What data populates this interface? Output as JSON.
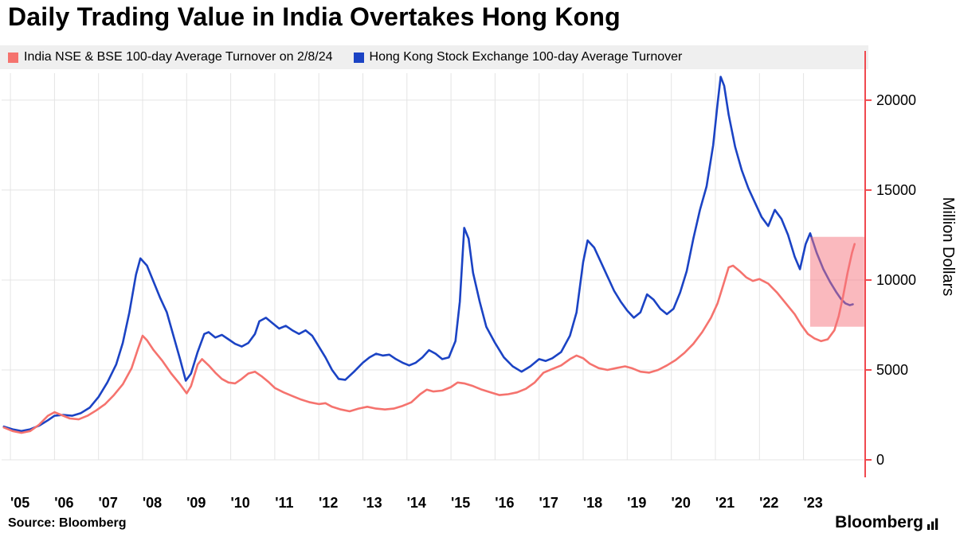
{
  "page": {
    "title": "Daily Trading Value in India Overtakes Hong Kong",
    "source": "Source: Bloomberg",
    "brand": "Bloomberg"
  },
  "chart_data": {
    "type": "line",
    "title": "Daily Trading Value in India Overtakes Hong Kong",
    "xlabel": "",
    "ylabel": "Million Dollars",
    "ylim": [
      0,
      21500
    ],
    "y_ticks": [
      0,
      5000,
      10000,
      15000,
      20000
    ],
    "x_range": [
      2004.8,
      2024.4
    ],
    "x_ticks": [
      {
        "label": "'05",
        "value": 2005
      },
      {
        "label": "'06",
        "value": 2006
      },
      {
        "label": "'07",
        "value": 2007
      },
      {
        "label": "'08",
        "value": 2008
      },
      {
        "label": "'09",
        "value": 2009
      },
      {
        "label": "'10",
        "value": 2010
      },
      {
        "label": "'11",
        "value": 2011
      },
      {
        "label": "'12",
        "value": 2012
      },
      {
        "label": "'13",
        "value": 2013
      },
      {
        "label": "'14",
        "value": 2014
      },
      {
        "label": "'15",
        "value": 2015
      },
      {
        "label": "'16",
        "value": 2016
      },
      {
        "label": "'17",
        "value": 2017
      },
      {
        "label": "'18",
        "value": 2018
      },
      {
        "label": "'19",
        "value": 2019
      },
      {
        "label": "'20",
        "value": 2020
      },
      {
        "label": "'21",
        "value": 2021
      },
      {
        "label": "'22",
        "value": 2022
      },
      {
        "label": "'23",
        "value": 2023
      }
    ],
    "grid": true,
    "grid_color": "#e4e4e4",
    "axis_color": "#f0494f",
    "legend_position": "top",
    "highlight_box": {
      "x0": 2023.15,
      "x1": 2024.38,
      "y0": 7400,
      "y1": 12400,
      "fill": "#f5737d",
      "opacity": 0.5
    },
    "series": [
      {
        "id": "india",
        "name": "India NSE & BSE 100-day Average Turnover on 2/8/24",
        "color": "#f5736e",
        "points": [
          [
            2004.85,
            1800
          ],
          [
            2005.05,
            1600
          ],
          [
            2005.25,
            1500
          ],
          [
            2005.45,
            1600
          ],
          [
            2005.65,
            1950
          ],
          [
            2005.85,
            2450
          ],
          [
            2006.0,
            2650
          ],
          [
            2006.15,
            2500
          ],
          [
            2006.35,
            2300
          ],
          [
            2006.55,
            2250
          ],
          [
            2006.75,
            2450
          ],
          [
            2006.95,
            2750
          ],
          [
            2007.15,
            3100
          ],
          [
            2007.35,
            3600
          ],
          [
            2007.55,
            4200
          ],
          [
            2007.75,
            5100
          ],
          [
            2007.9,
            6200
          ],
          [
            2008.0,
            6900
          ],
          [
            2008.1,
            6650
          ],
          [
            2008.25,
            6100
          ],
          [
            2008.45,
            5500
          ],
          [
            2008.65,
            4800
          ],
          [
            2008.85,
            4200
          ],
          [
            2009.0,
            3700
          ],
          [
            2009.1,
            4100
          ],
          [
            2009.25,
            5300
          ],
          [
            2009.35,
            5600
          ],
          [
            2009.5,
            5250
          ],
          [
            2009.65,
            4850
          ],
          [
            2009.8,
            4500
          ],
          [
            2009.95,
            4300
          ],
          [
            2010.1,
            4250
          ],
          [
            2010.25,
            4500
          ],
          [
            2010.4,
            4800
          ],
          [
            2010.55,
            4900
          ],
          [
            2010.7,
            4650
          ],
          [
            2010.85,
            4350
          ],
          [
            2011.0,
            4000
          ],
          [
            2011.2,
            3750
          ],
          [
            2011.4,
            3550
          ],
          [
            2011.6,
            3350
          ],
          [
            2011.8,
            3200
          ],
          [
            2012.0,
            3100
          ],
          [
            2012.15,
            3150
          ],
          [
            2012.3,
            2950
          ],
          [
            2012.5,
            2800
          ],
          [
            2012.7,
            2700
          ],
          [
            2012.9,
            2850
          ],
          [
            2013.1,
            2950
          ],
          [
            2013.3,
            2850
          ],
          [
            2013.5,
            2800
          ],
          [
            2013.7,
            2850
          ],
          [
            2013.9,
            3000
          ],
          [
            2014.1,
            3200
          ],
          [
            2014.3,
            3650
          ],
          [
            2014.45,
            3900
          ],
          [
            2014.6,
            3800
          ],
          [
            2014.8,
            3850
          ],
          [
            2015.0,
            4050
          ],
          [
            2015.15,
            4300
          ],
          [
            2015.3,
            4250
          ],
          [
            2015.5,
            4100
          ],
          [
            2015.7,
            3900
          ],
          [
            2015.9,
            3750
          ],
          [
            2016.1,
            3600
          ],
          [
            2016.3,
            3650
          ],
          [
            2016.5,
            3750
          ],
          [
            2016.7,
            3950
          ],
          [
            2016.9,
            4300
          ],
          [
            2017.1,
            4850
          ],
          [
            2017.3,
            5050
          ],
          [
            2017.5,
            5250
          ],
          [
            2017.7,
            5600
          ],
          [
            2017.85,
            5800
          ],
          [
            2018.0,
            5650
          ],
          [
            2018.15,
            5350
          ],
          [
            2018.35,
            5100
          ],
          [
            2018.55,
            5000
          ],
          [
            2018.75,
            5100
          ],
          [
            2018.95,
            5200
          ],
          [
            2019.1,
            5100
          ],
          [
            2019.3,
            4900
          ],
          [
            2019.5,
            4850
          ],
          [
            2019.7,
            5000
          ],
          [
            2019.9,
            5250
          ],
          [
            2020.1,
            5550
          ],
          [
            2020.3,
            5950
          ],
          [
            2020.5,
            6450
          ],
          [
            2020.7,
            7100
          ],
          [
            2020.9,
            7900
          ],
          [
            2021.05,
            8700
          ],
          [
            2021.15,
            9500
          ],
          [
            2021.3,
            10700
          ],
          [
            2021.4,
            10800
          ],
          [
            2021.55,
            10500
          ],
          [
            2021.7,
            10150
          ],
          [
            2021.85,
            9950
          ],
          [
            2022.0,
            10050
          ],
          [
            2022.2,
            9800
          ],
          [
            2022.4,
            9300
          ],
          [
            2022.6,
            8700
          ],
          [
            2022.8,
            8100
          ],
          [
            2022.95,
            7500
          ],
          [
            2023.1,
            7000
          ],
          [
            2023.25,
            6750
          ],
          [
            2023.4,
            6600
          ],
          [
            2023.55,
            6700
          ],
          [
            2023.7,
            7200
          ],
          [
            2023.8,
            8000
          ],
          [
            2023.9,
            9100
          ],
          [
            2024.0,
            10400
          ],
          [
            2024.1,
            11500
          ],
          [
            2024.16,
            12000
          ]
        ]
      },
      {
        "id": "hong-kong",
        "name": "Hong Kong Stock Exchange 100-day Average Turnover",
        "color": "#1b43c4",
        "points": [
          [
            2004.85,
            1850
          ],
          [
            2005.05,
            1700
          ],
          [
            2005.25,
            1600
          ],
          [
            2005.45,
            1700
          ],
          [
            2005.65,
            1900
          ],
          [
            2005.85,
            2200
          ],
          [
            2006.0,
            2450
          ],
          [
            2006.2,
            2500
          ],
          [
            2006.4,
            2450
          ],
          [
            2006.6,
            2600
          ],
          [
            2006.8,
            2900
          ],
          [
            2007.0,
            3500
          ],
          [
            2007.2,
            4300
          ],
          [
            2007.4,
            5300
          ],
          [
            2007.55,
            6500
          ],
          [
            2007.7,
            8200
          ],
          [
            2007.85,
            10300
          ],
          [
            2007.95,
            11200
          ],
          [
            2008.1,
            10800
          ],
          [
            2008.25,
            9900
          ],
          [
            2008.4,
            9000
          ],
          [
            2008.55,
            8200
          ],
          [
            2008.7,
            6900
          ],
          [
            2008.85,
            5600
          ],
          [
            2008.98,
            4400
          ],
          [
            2009.1,
            4800
          ],
          [
            2009.25,
            6000
          ],
          [
            2009.4,
            7000
          ],
          [
            2009.5,
            7100
          ],
          [
            2009.65,
            6800
          ],
          [
            2009.8,
            6950
          ],
          [
            2009.95,
            6700
          ],
          [
            2010.1,
            6450
          ],
          [
            2010.25,
            6300
          ],
          [
            2010.4,
            6500
          ],
          [
            2010.55,
            7000
          ],
          [
            2010.65,
            7700
          ],
          [
            2010.8,
            7900
          ],
          [
            2010.95,
            7600
          ],
          [
            2011.1,
            7300
          ],
          [
            2011.25,
            7450
          ],
          [
            2011.4,
            7200
          ],
          [
            2011.55,
            7000
          ],
          [
            2011.7,
            7200
          ],
          [
            2011.85,
            6900
          ],
          [
            2012.0,
            6300
          ],
          [
            2012.15,
            5700
          ],
          [
            2012.3,
            5000
          ],
          [
            2012.45,
            4500
          ],
          [
            2012.6,
            4450
          ],
          [
            2012.8,
            4900
          ],
          [
            2013.0,
            5400
          ],
          [
            2013.15,
            5700
          ],
          [
            2013.3,
            5900
          ],
          [
            2013.45,
            5800
          ],
          [
            2013.6,
            5850
          ],
          [
            2013.75,
            5600
          ],
          [
            2013.9,
            5400
          ],
          [
            2014.05,
            5250
          ],
          [
            2014.2,
            5400
          ],
          [
            2014.35,
            5700
          ],
          [
            2014.5,
            6100
          ],
          [
            2014.65,
            5900
          ],
          [
            2014.8,
            5600
          ],
          [
            2014.95,
            5700
          ],
          [
            2015.1,
            6600
          ],
          [
            2015.2,
            8800
          ],
          [
            2015.3,
            12900
          ],
          [
            2015.4,
            12300
          ],
          [
            2015.5,
            10400
          ],
          [
            2015.65,
            8800
          ],
          [
            2015.8,
            7400
          ],
          [
            2016.0,
            6500
          ],
          [
            2016.2,
            5700
          ],
          [
            2016.4,
            5200
          ],
          [
            2016.6,
            4900
          ],
          [
            2016.8,
            5200
          ],
          [
            2017.0,
            5600
          ],
          [
            2017.15,
            5500
          ],
          [
            2017.3,
            5650
          ],
          [
            2017.5,
            6000
          ],
          [
            2017.7,
            6900
          ],
          [
            2017.85,
            8200
          ],
          [
            2018.0,
            11000
          ],
          [
            2018.1,
            12200
          ],
          [
            2018.25,
            11800
          ],
          [
            2018.4,
            11000
          ],
          [
            2018.55,
            10200
          ],
          [
            2018.7,
            9400
          ],
          [
            2018.85,
            8800
          ],
          [
            2019.0,
            8300
          ],
          [
            2019.15,
            7900
          ],
          [
            2019.3,
            8200
          ],
          [
            2019.45,
            9200
          ],
          [
            2019.6,
            8900
          ],
          [
            2019.75,
            8400
          ],
          [
            2019.9,
            8100
          ],
          [
            2020.05,
            8400
          ],
          [
            2020.2,
            9300
          ],
          [
            2020.35,
            10500
          ],
          [
            2020.5,
            12300
          ],
          [
            2020.65,
            13900
          ],
          [
            2020.8,
            15200
          ],
          [
            2020.95,
            17500
          ],
          [
            2021.05,
            19800
          ],
          [
            2021.12,
            21300
          ],
          [
            2021.2,
            20800
          ],
          [
            2021.3,
            19200
          ],
          [
            2021.45,
            17400
          ],
          [
            2021.6,
            16100
          ],
          [
            2021.75,
            15100
          ],
          [
            2021.9,
            14300
          ],
          [
            2022.05,
            13500
          ],
          [
            2022.2,
            13000
          ],
          [
            2022.35,
            13900
          ],
          [
            2022.5,
            13400
          ],
          [
            2022.65,
            12500
          ],
          [
            2022.8,
            11300
          ],
          [
            2022.92,
            10600
          ],
          [
            2023.05,
            12000
          ],
          [
            2023.15,
            12600
          ],
          [
            2023.3,
            11500
          ],
          [
            2023.45,
            10600
          ],
          [
            2023.6,
            9900
          ],
          [
            2023.75,
            9300
          ],
          [
            2023.85,
            8950
          ],
          [
            2023.95,
            8700
          ],
          [
            2024.05,
            8600
          ],
          [
            2024.12,
            8650
          ]
        ]
      }
    ]
  }
}
